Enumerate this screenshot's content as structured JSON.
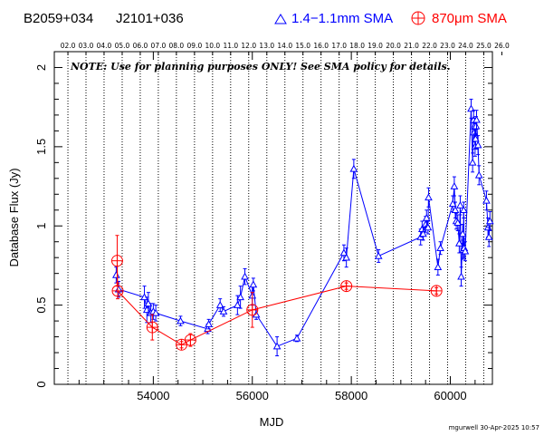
{
  "header": {
    "source_name": "B2059+034",
    "source_alias": "J2101+036",
    "legend_blue_label": "1.4−1.1mm SMA",
    "legend_red_label": "870μm SMA"
  },
  "note": "NOTE: Use for planning purposes ONLY!  See SMA policy for details.",
  "stamp": "mgurwell 30-Apr-2025 10:57",
  "colors": {
    "blue": "#0000ff",
    "red": "#ff0000",
    "axis": "#000000"
  },
  "chart_data": {
    "type": "scatter",
    "title": "",
    "xlabel": "MJD",
    "ylabel": "Database Flux (Jy)",
    "xlim": [
      52000,
      60850
    ],
    "ylim": [
      0,
      2.1
    ],
    "x_ticks": [
      54000,
      56000,
      58000,
      60000
    ],
    "x_tick_labels": [
      "54000",
      "56000",
      "58000",
      "60000"
    ],
    "y_ticks": [
      0,
      0.5,
      1,
      1.5,
      2
    ],
    "y_tick_labels": [
      "0",
      "0.5",
      "1",
      "1.5",
      "2"
    ],
    "year_labels": [
      "02.0",
      "03.0",
      "04.0",
      "05.0",
      "06.0",
      "07.0",
      "08.0",
      "09.0",
      "10.0",
      "11.0",
      "12.0",
      "13.0",
      "14.0",
      "15.0",
      "16.0",
      "17.0",
      "18.0",
      "19.0",
      "20.0",
      "21.0",
      "22.0",
      "23.0",
      "24.0",
      "25.0",
      "26.0"
    ],
    "year_mjd": [
      52275,
      52640,
      53005,
      53371,
      53736,
      54101,
      54466,
      54832,
      55197,
      55562,
      55927,
      56293,
      56658,
      57023,
      57388,
      57754,
      58119,
      58484,
      58849,
      59215,
      59580,
      59945,
      60310,
      60676,
      61041
    ],
    "series": [
      {
        "name": "1.4−1.1mm SMA",
        "color": "#0000ff",
        "marker": "triangle",
        "x": [
          53250,
          53300,
          53820,
          53870,
          53900,
          53950,
          54000,
          54050,
          54550,
          55100,
          55120,
          55350,
          55420,
          55700,
          55760,
          55850,
          56000,
          56020,
          56080,
          56500,
          56900,
          57850,
          57900,
          58050,
          58550,
          59400,
          59430,
          59450,
          59500,
          59520,
          59550,
          59560,
          59750,
          59800,
          60050,
          60080,
          60100,
          60120,
          60150,
          60180,
          60200,
          60220,
          60250,
          60260,
          60270,
          60280,
          60300,
          60420,
          60450,
          60470,
          60480,
          60490,
          60500,
          60510,
          60520,
          60530,
          60560,
          60580,
          60730,
          60760,
          60780,
          60800
        ],
        "y": [
          0.69,
          0.6,
          0.55,
          0.47,
          0.51,
          0.45,
          0.46,
          0.45,
          0.4,
          0.35,
          0.38,
          0.5,
          0.46,
          0.5,
          0.55,
          0.68,
          0.56,
          0.63,
          0.44,
          0.24,
          0.29,
          0.83,
          0.8,
          1.36,
          0.81,
          0.93,
          0.98,
          0.95,
          1.01,
          1.05,
          0.99,
          1.18,
          0.74,
          0.86,
          1.14,
          1.25,
          1.1,
          1.03,
          1.02,
          0.89,
          1.13,
          0.68,
          0.95,
          0.85,
          1.1,
          0.86,
          0.84,
          1.74,
          1.4,
          1.67,
          1.59,
          1.63,
          1.5,
          1.55,
          1.63,
          1.67,
          1.51,
          1.32,
          1.16,
          0.99,
          0.93,
          1.03
        ],
        "err": [
          0.05,
          0.05,
          0.07,
          0.08,
          0.07,
          0.06,
          0.05,
          0.05,
          0.03,
          0.03,
          0.03,
          0.04,
          0.03,
          0.06,
          0.07,
          0.05,
          0.06,
          0.04,
          0.03,
          0.06,
          0.02,
          0.05,
          0.06,
          0.06,
          0.04,
          0.05,
          0.05,
          0.04,
          0.05,
          0.05,
          0.04,
          0.06,
          0.05,
          0.04,
          0.05,
          0.06,
          0.05,
          0.05,
          0.05,
          0.06,
          0.06,
          0.06,
          0.06,
          0.06,
          0.05,
          0.06,
          0.06,
          0.06,
          0.06,
          0.06,
          0.06,
          0.05,
          0.06,
          0.06,
          0.06,
          0.06,
          0.06,
          0.06,
          0.06,
          0.06,
          0.06,
          0.06
        ]
      },
      {
        "name": "870μm SMA",
        "color": "#ff0000",
        "marker": "circle-plus",
        "x": [
          53270,
          53280,
          53980,
          54570,
          54750,
          56000,
          57900,
          59720
        ],
        "y": [
          0.78,
          0.59,
          0.36,
          0.25,
          0.28,
          0.47,
          0.62,
          0.59
        ],
        "err": [
          0.16,
          0.05,
          0.08,
          0.02,
          0.04,
          0.11,
          0.02,
          0.02
        ]
      }
    ]
  }
}
